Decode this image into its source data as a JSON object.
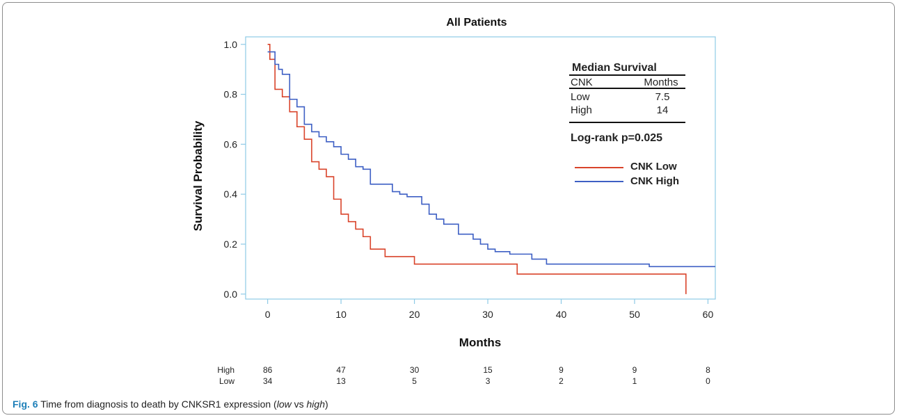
{
  "chart_data": {
    "type": "line",
    "title": "All Patients",
    "xlabel": "Months",
    "ylabel": "Survival Probability",
    "xlim": [
      -3,
      61
    ],
    "ylim": [
      -0.02,
      1.03
    ],
    "xticks": [
      0,
      10,
      20,
      30,
      40,
      50,
      60
    ],
    "yticks": [
      0.0,
      0.2,
      0.4,
      0.6,
      0.8,
      1.0
    ],
    "ytick_labels": [
      "0.0",
      "0.2",
      "0.4",
      "0.6",
      "0.8",
      "1.0"
    ],
    "grid": false,
    "legend_position": "top-right",
    "series": [
      {
        "name": "CNK Low",
        "color": "#d9432a",
        "step": true,
        "x": [
          0,
          0.3,
          1,
          2,
          3,
          4,
          5,
          6,
          7,
          8,
          9,
          10,
          11,
          12,
          13,
          14,
          16,
          20,
          34,
          57,
          57
        ],
        "y": [
          1.0,
          0.94,
          0.82,
          0.79,
          0.73,
          0.67,
          0.62,
          0.53,
          0.5,
          0.47,
          0.38,
          0.32,
          0.29,
          0.26,
          0.23,
          0.18,
          0.15,
          0.12,
          0.08,
          0.08,
          0.0
        ]
      },
      {
        "name": "CNK High",
        "color": "#3d5fc4",
        "step": true,
        "x": [
          0,
          1,
          1.5,
          2,
          3,
          4,
          5,
          6,
          7,
          8,
          9,
          10,
          11,
          12,
          13,
          14,
          17,
          18,
          19,
          21,
          22,
          23,
          24,
          26,
          28,
          29,
          30,
          31,
          33,
          36,
          38,
          52,
          61
        ],
        "y": [
          0.97,
          0.92,
          0.9,
          0.88,
          0.78,
          0.75,
          0.68,
          0.65,
          0.63,
          0.61,
          0.59,
          0.56,
          0.54,
          0.51,
          0.5,
          0.44,
          0.41,
          0.4,
          0.39,
          0.36,
          0.32,
          0.3,
          0.28,
          0.24,
          0.22,
          0.2,
          0.18,
          0.17,
          0.16,
          0.14,
          0.12,
          0.11,
          0.11
        ]
      }
    ],
    "median_table": {
      "title": "Median Survival",
      "headers": [
        "CNK",
        "Months"
      ],
      "rows": [
        [
          "Low",
          "7.5"
        ],
        [
          "High",
          "14"
        ]
      ]
    },
    "logrank": "Log-rank p=0.025",
    "at_risk": {
      "times": [
        0,
        10,
        20,
        30,
        40,
        50,
        60
      ],
      "rows": [
        {
          "label": "High",
          "values": [
            "86",
            "47",
            "30",
            "15",
            "9",
            "9",
            "8"
          ]
        },
        {
          "label": "Low",
          "values": [
            "34",
            "13",
            "5",
            "3",
            "2",
            "1",
            "0"
          ]
        }
      ]
    }
  },
  "caption": {
    "label": "Fig. 6",
    "text_before": " Time from diagnosis to death by CNKSR1 expression (",
    "low": "low",
    "vs": " vs ",
    "high": "high",
    "text_after": ")"
  }
}
